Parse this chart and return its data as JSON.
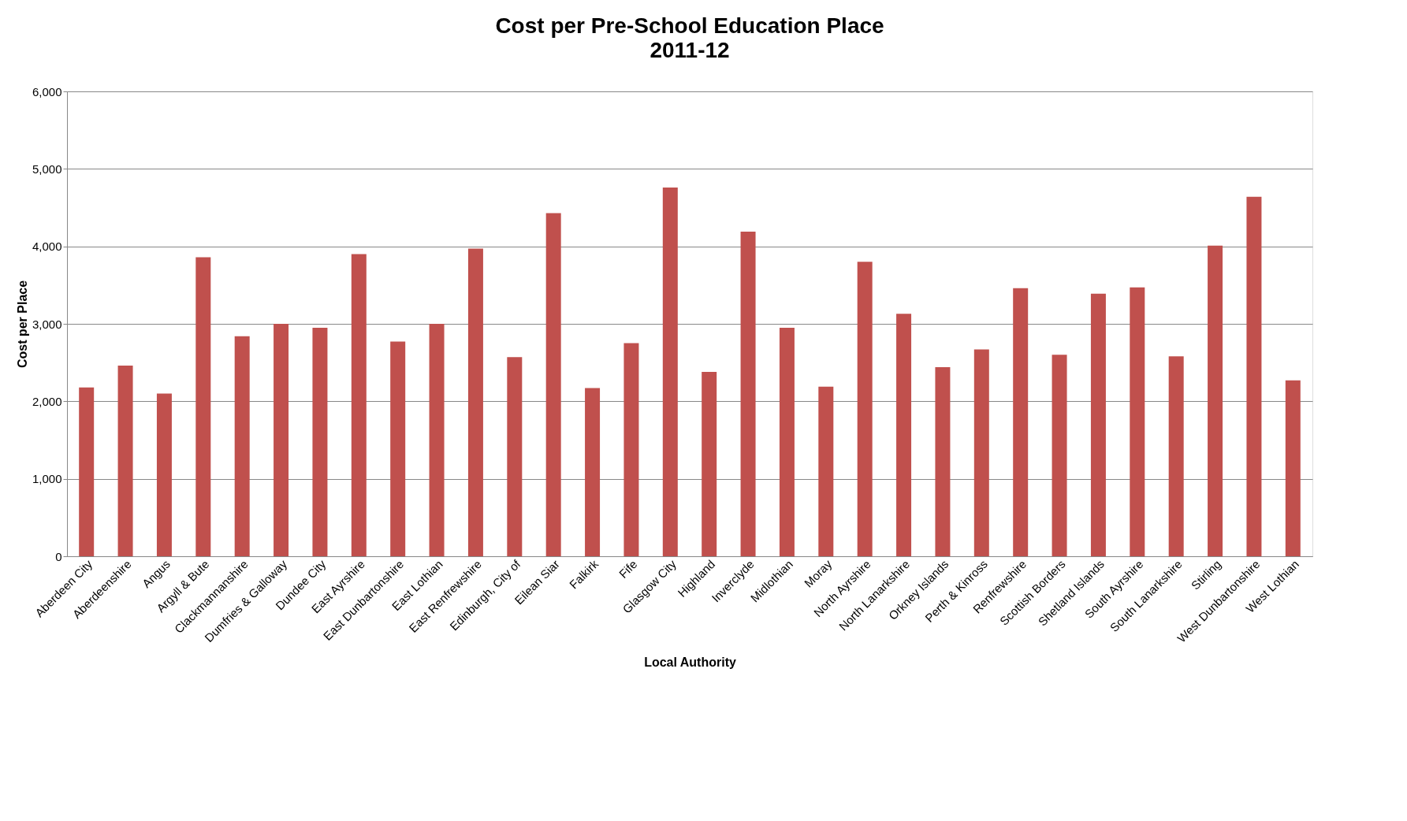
{
  "chart_data": {
    "type": "bar",
    "title": "Cost per Pre-School Education Place",
    "subtitle": "2011-12",
    "xlabel": "Local Authority",
    "ylabel": "Cost per Place",
    "categories": [
      "Aberdeen City",
      "Aberdeenshire",
      "Angus",
      "Argyll & Bute",
      "Clackmannanshire",
      "Dumfries & Galloway",
      "Dundee City",
      "East Ayrshire",
      "East Dunbartonshire",
      "East Lothian",
      "East Renfrewshire",
      "Edinburgh, City of",
      "Eilean Siar",
      "Falkirk",
      "Fife",
      "Glasgow City",
      "Highland",
      "Inverclyde",
      "Midlothian",
      "Moray",
      "North Ayrshire",
      "North Lanarkshire",
      "Orkney Islands",
      "Perth & Kinross",
      "Renfrewshire",
      "Scottish Borders",
      "Shetland Islands",
      "South Ayrshire",
      "South Lanarkshire",
      "Stirling",
      "West Dunbartonshire",
      "West Lothian"
    ],
    "values": [
      2180,
      2460,
      2100,
      3860,
      2840,
      3000,
      2950,
      3900,
      2770,
      3000,
      3970,
      2570,
      4430,
      2170,
      2750,
      4760,
      2380,
      4190,
      2950,
      2190,
      3800,
      3130,
      2440,
      2670,
      3460,
      2600,
      3390,
      3470,
      2580,
      4010,
      4640,
      2270
    ],
    "color": "#c0504d",
    "ylim": [
      0,
      6000
    ],
    "yticks": [
      {
        "value": 0,
        "label": "0"
      },
      {
        "value": 1000,
        "label": "1,000"
      },
      {
        "value": 2000,
        "label": "2,000"
      },
      {
        "value": 3000,
        "label": "3,000"
      },
      {
        "value": 4000,
        "label": "4,000"
      },
      {
        "value": 5000,
        "label": "5,000"
      },
      {
        "value": 6000,
        "label": "6,000"
      }
    ],
    "grid": "y"
  }
}
